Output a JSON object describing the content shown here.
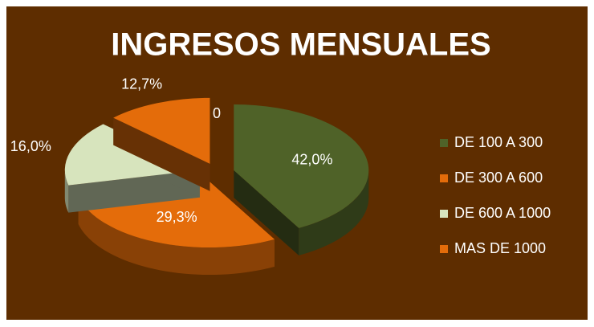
{
  "chart_data": {
    "type": "pie",
    "title": "INGRESOS MENSUALES",
    "categories": [
      "DE 100 A 300",
      "DE 300 A 600",
      "DE 600 A 1000",
      "MAS DE 1000",
      null
    ],
    "values": [
      42.0,
      29.3,
      16.0,
      12.7,
      0
    ],
    "value_labels": [
      "42,0%",
      "29,3%",
      "16,0%",
      "12,7%",
      "0"
    ],
    "colors": [
      "#4f6228",
      "#e46c0a",
      "#d7e4bd",
      "#e46c0a",
      "#3b4a1e"
    ],
    "legend": "right"
  }
}
